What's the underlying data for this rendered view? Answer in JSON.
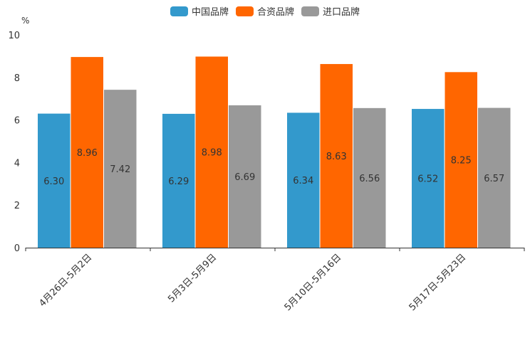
{
  "chart_data": {
    "type": "bar",
    "title": "",
    "xlabel": "",
    "ylabel": "%",
    "ylim": [
      0,
      10
    ],
    "yticks": [
      0,
      2,
      4,
      6,
      8,
      10
    ],
    "grid": false,
    "legend_position": "top-center",
    "categories": [
      "4月26日-5月2日",
      "5月3日-5月9日",
      "5月10日-5月16日",
      "5月17日-5月23日"
    ],
    "series": [
      {
        "name": "中国品牌",
        "color": "#3399cc",
        "values": [
          6.3,
          6.29,
          6.34,
          6.52
        ],
        "labels": [
          "6.30",
          "6.29",
          "6.34",
          "6.52"
        ]
      },
      {
        "name": "合资品牌",
        "color": "#ff6600",
        "values": [
          8.96,
          8.98,
          8.63,
          8.25
        ],
        "labels": [
          "8.96",
          "8.98",
          "8.63",
          "8.25"
        ]
      },
      {
        "name": "进口品牌",
        "color": "#999999",
        "values": [
          7.42,
          6.69,
          6.56,
          6.57
        ],
        "labels": [
          "7.42",
          "6.69",
          "6.56",
          "6.57"
        ]
      }
    ]
  }
}
